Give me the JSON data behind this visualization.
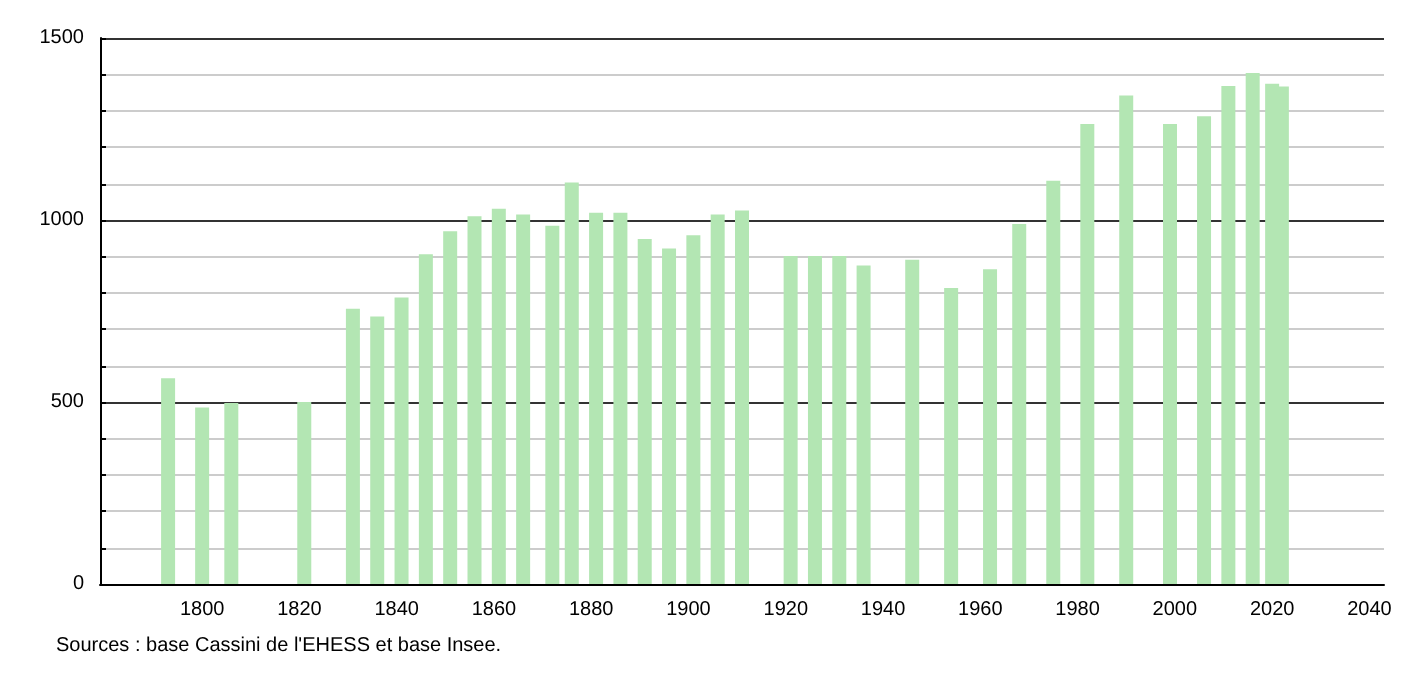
{
  "chart_data": {
    "type": "bar",
    "x": [
      1793,
      1800,
      1806,
      1821,
      1831,
      1836,
      1841,
      1846,
      1851,
      1856,
      1861,
      1866,
      1872,
      1876,
      1881,
      1886,
      1891,
      1896,
      1901,
      1906,
      1911,
      1921,
      1926,
      1931,
      1936,
      1946,
      1954,
      1962,
      1968,
      1975,
      1982,
      1990,
      1999,
      2006,
      2011,
      2016,
      2020,
      2022
    ],
    "values": [
      565,
      485,
      497,
      500,
      756,
      735,
      787,
      906,
      969,
      1010,
      1031,
      1015,
      984,
      1103,
      1020,
      1020,
      948,
      922,
      958,
      1015,
      1026,
      901,
      901,
      901,
      875,
      891,
      813,
      865,
      989,
      1108,
      1264,
      1342,
      1264,
      1285,
      1368,
      1404,
      1374,
      1367
    ],
    "color": "#b3e6b3",
    "xlim": [
      1779,
      2043
    ],
    "xticks": [
      1800,
      1820,
      1840,
      1860,
      1880,
      1900,
      1920,
      1940,
      1960,
      1980,
      2000,
      2020,
      2040
    ],
    "ylim": [
      0,
      1500
    ],
    "yticks": [
      0,
      {
        "value": 100,
        "label": null
      },
      {
        "value": 200,
        "label": null
      },
      {
        "value": 300,
        "label": null
      },
      {
        "value": 400,
        "label": null
      },
      500,
      {
        "value": 600,
        "label": null
      },
      {
        "value": 700,
        "label": null
      },
      {
        "value": 800,
        "label": null
      },
      {
        "value": 900,
        "label": null
      },
      1000,
      {
        "value": 1100,
        "label": null
      },
      {
        "value": 1200,
        "label": null
      },
      {
        "value": 1300,
        "label": null
      },
      {
        "value": 1400,
        "label": null
      },
      1500
    ],
    "grid": "y",
    "annotations": [
      "Sources : base Cassini de l'EHESS et base Insee."
    ]
  }
}
